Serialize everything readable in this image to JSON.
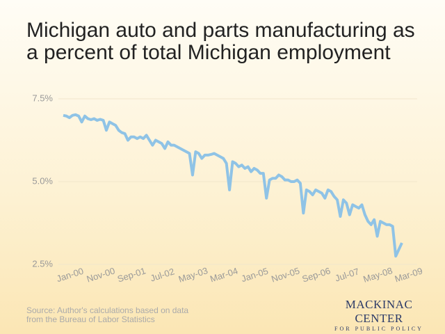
{
  "chart_data": {
    "type": "line",
    "title": "Michigan auto and parts manufacturing as a percent of total Michigan employment",
    "source": [
      "Source: Author's calculations based on data",
      "from the Bureau of Labor Statistics"
    ],
    "logo": {
      "name": "MACKINAC CENTER",
      "tagline": "FOR PUBLIC POLICY"
    },
    "categories": [
      "Jan-00",
      null,
      null,
      null,
      null,
      null,
      null,
      null,
      null,
      null,
      "Nov-00",
      null,
      null,
      null,
      null,
      null,
      null,
      null,
      null,
      null,
      "Sep-01",
      null,
      null,
      null,
      null,
      null,
      null,
      null,
      null,
      null,
      "Jul-02",
      null,
      null,
      null,
      null,
      null,
      null,
      null,
      null,
      null,
      "May-03",
      null,
      null,
      null,
      null,
      null,
      null,
      null,
      null,
      null,
      "Mar-04",
      null,
      null,
      null,
      null,
      null,
      null,
      null,
      null,
      null,
      "Jan-05",
      null,
      null,
      null,
      null,
      null,
      null,
      null,
      null,
      null,
      "Nov-05",
      null,
      null,
      null,
      null,
      null,
      null,
      null,
      null,
      null,
      "Sep-06",
      null,
      null,
      null,
      null,
      null,
      null,
      null,
      null,
      null,
      "Jul-07",
      null,
      null,
      null,
      null,
      null,
      null,
      null,
      null,
      null,
      "May-08",
      null,
      null,
      null,
      null,
      null,
      null,
      null,
      null,
      null,
      "Mar-09"
    ],
    "series": [
      {
        "color": "#8fc3e6",
        "values": [
          7.0,
          6.98,
          6.93,
          7.0,
          7.02,
          6.98,
          6.8,
          6.98,
          6.9,
          6.87,
          6.9,
          6.85,
          6.88,
          6.85,
          6.55,
          6.8,
          6.75,
          6.7,
          6.55,
          6.48,
          6.45,
          6.25,
          6.35,
          6.35,
          6.3,
          6.35,
          6.3,
          6.4,
          6.25,
          6.1,
          6.25,
          6.2,
          6.15,
          6.0,
          6.2,
          6.1,
          6.1,
          6.05,
          6.0,
          5.95,
          5.9,
          5.85,
          5.2,
          5.9,
          5.85,
          5.7,
          5.8,
          5.8,
          5.82,
          5.85,
          5.8,
          5.75,
          5.7,
          5.55,
          4.75,
          5.6,
          5.55,
          5.45,
          5.5,
          5.4,
          5.45,
          5.3,
          5.4,
          5.35,
          5.25,
          5.25,
          4.5,
          5.05,
          5.1,
          5.1,
          5.2,
          5.15,
          5.05,
          5.05,
          5.0,
          5.0,
          5.05,
          4.95,
          4.05,
          4.75,
          4.7,
          4.6,
          4.75,
          4.7,
          4.65,
          4.5,
          4.75,
          4.7,
          4.55,
          4.45,
          3.95,
          4.45,
          4.35,
          4.0,
          4.3,
          4.25,
          4.2,
          4.3,
          4.0,
          3.8,
          3.7,
          3.85,
          3.35,
          3.8,
          3.75,
          3.7,
          3.7,
          3.65,
          2.75,
          2.95,
          3.15
        ]
      }
    ],
    "ylim": [
      2.5,
      7.5
    ],
    "yticks": [
      {
        "value": 7.5,
        "label": "7.5%"
      },
      {
        "value": 5.0,
        "label": "5.0%"
      },
      {
        "value": 2.5,
        "label": "2.5%"
      }
    ],
    "grid": true
  }
}
